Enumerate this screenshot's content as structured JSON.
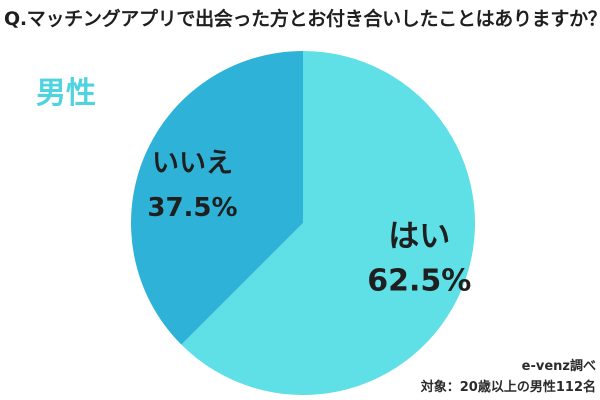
{
  "question": "Q.マッチングアプリで出会った方とお付き合いしたことはありますか？",
  "group_label": "男性",
  "footer": {
    "source": "e-venz調べ",
    "target": "対象：20歳以上の男性112名"
  },
  "colors": {
    "yes": "#5fdfe6",
    "no": "#2fb2d8",
    "group_label": "#4fd3df"
  },
  "chart_data": {
    "type": "pie",
    "title": "",
    "slices": [
      {
        "label": "はい",
        "value": 62.5,
        "display": "62.5%",
        "color": "#5fdfe6"
      },
      {
        "label": "いいえ",
        "value": 37.5,
        "display": "37.5%",
        "color": "#2fb2d8"
      }
    ]
  }
}
